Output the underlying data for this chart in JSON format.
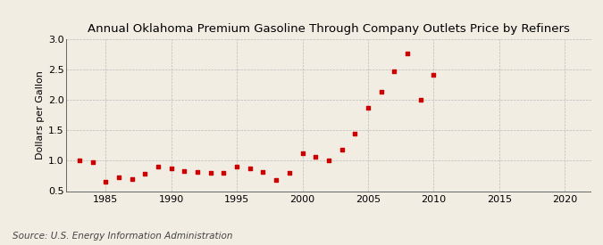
{
  "title": "Annual Oklahoma Premium Gasoline Through Company Outlets Price by Refiners",
  "ylabel": "Dollars per Gallon",
  "source": "Source: U.S. Energy Information Administration",
  "background_color": "#f2ede3",
  "marker_color": "#cc0000",
  "years": [
    1983,
    1984,
    1985,
    1986,
    1987,
    1988,
    1989,
    1990,
    1991,
    1992,
    1993,
    1994,
    1995,
    1996,
    1997,
    1998,
    1999,
    2000,
    2001,
    2002,
    2003,
    2004,
    2005,
    2006,
    2007,
    2008,
    2009,
    2010
  ],
  "values": [
    1.01,
    0.98,
    0.65,
    0.72,
    0.7,
    0.78,
    0.91,
    0.87,
    0.83,
    0.81,
    0.8,
    0.8,
    0.91,
    0.88,
    0.82,
    0.68,
    0.8,
    1.13,
    1.06,
    1.01,
    1.18,
    1.45,
    1.87,
    2.13,
    2.47,
    2.76,
    2.01,
    2.41
  ],
  "xlim": [
    1982,
    2022
  ],
  "ylim": [
    0.5,
    3.0
  ],
  "xticks": [
    1985,
    1990,
    1995,
    2000,
    2005,
    2010,
    2015,
    2020
  ],
  "yticks": [
    0.5,
    1.0,
    1.5,
    2.0,
    2.5,
    3.0
  ],
  "title_fontsize": 9.5,
  "label_fontsize": 8,
  "tick_fontsize": 8,
  "source_fontsize": 7.5
}
